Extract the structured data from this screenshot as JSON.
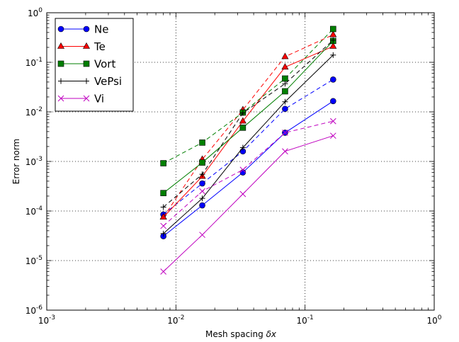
{
  "chart_data": {
    "type": "line",
    "xscale": "log",
    "yscale": "log",
    "xlim": [
      0.001,
      1
    ],
    "ylim": [
      1e-06,
      1
    ],
    "xlabel_text": "Mesh spacing ",
    "xlabel_symbol": "δx",
    "ylabel": "Error norm",
    "x_tick_labels": [
      {
        "base": "10",
        "exp": "-3"
      },
      {
        "base": "10",
        "exp": "-2"
      },
      {
        "base": "10",
        "exp": "-1"
      },
      {
        "base": "10",
        "exp": "0"
      }
    ],
    "y_tick_labels": [
      {
        "base": "10",
        "exp": "-6"
      },
      {
        "base": "10",
        "exp": "-5"
      },
      {
        "base": "10",
        "exp": "-4"
      },
      {
        "base": "10",
        "exp": "-3"
      },
      {
        "base": "10",
        "exp": "-2"
      },
      {
        "base": "10",
        "exp": "-1"
      },
      {
        "base": "10",
        "exp": "0"
      }
    ],
    "grid": true,
    "legend_position": "upper-left",
    "x": [
      0.008,
      0.016,
      0.033,
      0.07,
      0.165
    ],
    "series": [
      {
        "name": "Ne",
        "color": "#0000ff",
        "marker": "circle",
        "solid": [
          3.1e-05,
          0.00013,
          0.0006,
          0.0038,
          0.0165
        ],
        "dashed": [
          8.5e-05,
          0.00036,
          0.0016,
          0.0115,
          0.045
        ]
      },
      {
        "name": "Te",
        "color": "#ff0000",
        "marker": "triangle",
        "solid": [
          7.5e-05,
          0.0005,
          0.0065,
          0.08,
          0.21
        ],
        "dashed": [
          7.5e-05,
          0.0011,
          0.011,
          0.13,
          0.36
        ]
      },
      {
        "name": "Vort",
        "color": "#007f00",
        "marker": "square",
        "solid": [
          0.00023,
          0.00095,
          0.0048,
          0.026,
          0.27
        ],
        "dashed": [
          0.00092,
          0.0024,
          0.0097,
          0.047,
          0.47
        ]
      },
      {
        "name": "VePsi",
        "color": "#000000",
        "marker": "plus",
        "solid": [
          3.5e-05,
          0.00018,
          0.0019,
          0.016,
          0.14
        ],
        "dashed": [
          0.00012,
          0.00055,
          0.0095,
          0.037,
          0.28
        ]
      },
      {
        "name": "Vi",
        "color": "#bf00bf",
        "marker": "x",
        "solid": [
          6e-06,
          3.3e-05,
          0.00022,
          0.0016,
          0.0033
        ],
        "dashed": [
          5e-05,
          0.00025,
          0.00068,
          0.0038,
          0.0065
        ]
      }
    ]
  }
}
